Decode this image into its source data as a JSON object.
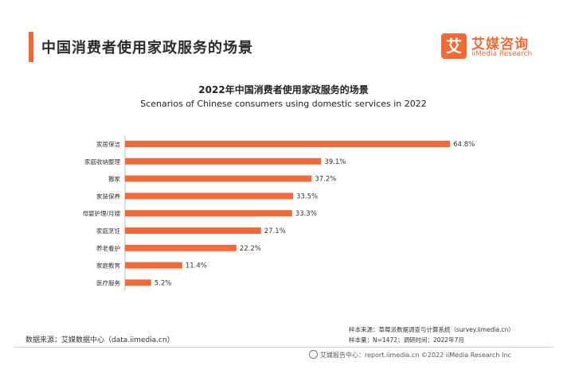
{
  "header": {
    "title": "中国消费者使用家政服务的场景",
    "logo": {
      "mark": "艾",
      "name": "艾媒咨询",
      "sub": "iiMedia Research"
    }
  },
  "colors": {
    "accent": "#f06a35",
    "bar": "#f06a35"
  },
  "chart_data": {
    "type": "bar",
    "orientation": "horizontal",
    "title": "2022年中国消费者使用家政服务的场景",
    "subtitle": "Scenarios of Chinese consumers using domestic services in 2022",
    "categories": [
      "家居保洁",
      "家庭收纳整理",
      "搬家",
      "家装保养",
      "母婴护理/月嫂",
      "家庭烹饪",
      "养老看护",
      "家庭教育",
      "医疗服务"
    ],
    "values": [
      64.8,
      39.1,
      37.2,
      33.5,
      33.3,
      27.1,
      22.2,
      11.4,
      5.2
    ],
    "value_labels": [
      "64.8%",
      "39.1%",
      "37.2%",
      "33.5%",
      "33.3%",
      "27.1%",
      "22.2%",
      "11.4%",
      "5.2%"
    ],
    "unit": "%",
    "xlim": [
      0,
      70
    ],
    "grid": false,
    "legend": "none"
  },
  "footer": {
    "source_left": "数据来源：艾媒数据中心（data.iimedia.cn）",
    "sample_source": "样本来源：草莓派数据调查与计算系统（survey.iimedia.cn）",
    "sample_size": "样本量：N=1472；调研时间：2022年7月",
    "report_center": "艾媒报告中心：report.iimedia.cn  ©2022  iiMedia Research  Inc"
  }
}
